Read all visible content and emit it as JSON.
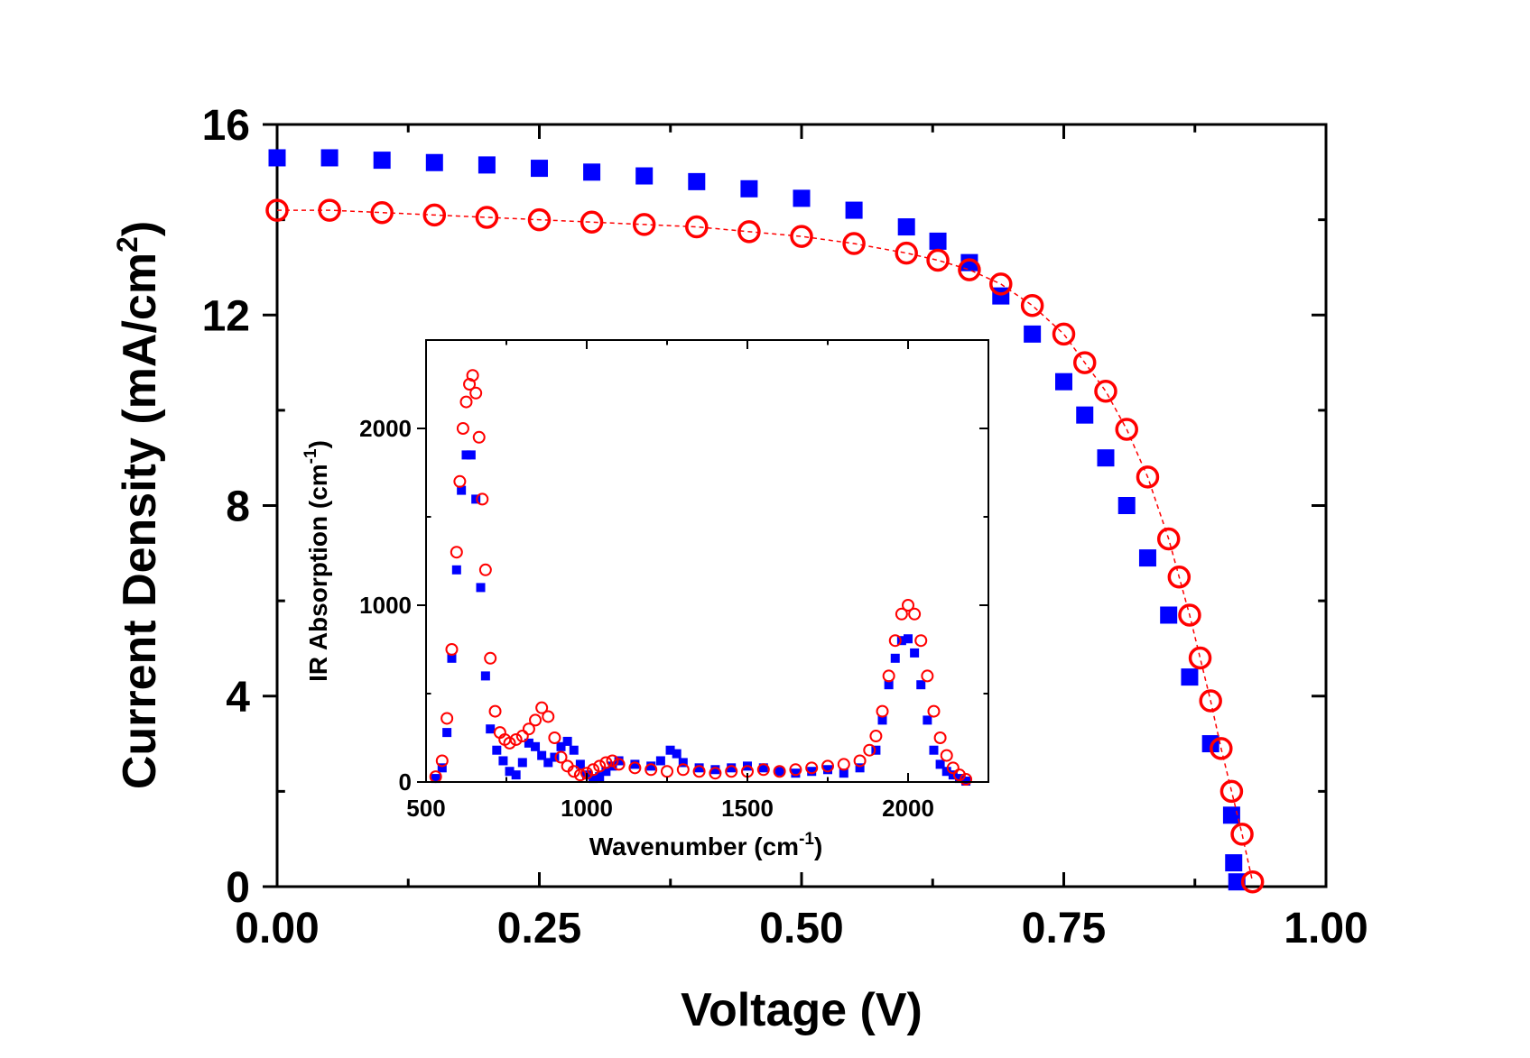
{
  "chart_data": [
    {
      "type": "scatter",
      "title": "",
      "xlabel": "Voltage (V)",
      "ylabel": "Current Density (mA/cm²)",
      "ylabel_main": "Current Density (mA/cm",
      "ylabel_sup": "2",
      "ylabel_tail": ")",
      "xlim": [
        0.0,
        1.0
      ],
      "ylim": [
        0,
        16
      ],
      "xticks": [
        0.0,
        0.25,
        0.5,
        0.75,
        1.0
      ],
      "xtick_labels": [
        "0.00",
        "0.25",
        "0.50",
        "0.75",
        "1.00"
      ],
      "yticks": [
        0,
        4,
        8,
        12,
        16
      ],
      "ytick_labels": [
        "0",
        "4",
        "8",
        "12",
        "16"
      ],
      "grid": false,
      "legend": "none",
      "series": [
        {
          "color": "#0000ff",
          "marker": "filled-square",
          "x": [
            0.0,
            0.05,
            0.1,
            0.15,
            0.2,
            0.25,
            0.3,
            0.35,
            0.4,
            0.45,
            0.5,
            0.55,
            0.6,
            0.63,
            0.66,
            0.69,
            0.72,
            0.75,
            0.77,
            0.79,
            0.81,
            0.83,
            0.85,
            0.87,
            0.89,
            0.91
          ],
          "y": [
            15.3,
            15.3,
            15.25,
            15.2,
            15.15,
            15.08,
            15.0,
            14.92,
            14.8,
            14.65,
            14.45,
            14.2,
            13.85,
            13.55,
            13.1,
            12.4,
            11.6,
            10.6,
            9.9,
            9.0,
            8.0,
            6.9,
            5.7,
            4.4,
            3.0,
            1.5
          ],
          "x_extra": [
            0.912,
            0.915
          ],
          "y_extra": [
            0.5,
            0.1
          ]
        },
        {
          "color": "#ff0000",
          "marker": "open-circle",
          "x": [
            0.0,
            0.05,
            0.1,
            0.15,
            0.2,
            0.25,
            0.3,
            0.35,
            0.4,
            0.45,
            0.5,
            0.55,
            0.6,
            0.63,
            0.66,
            0.69,
            0.72,
            0.75,
            0.77,
            0.79,
            0.81,
            0.83,
            0.85,
            0.86,
            0.87,
            0.88,
            0.89,
            0.9,
            0.91,
            0.92,
            0.93
          ],
          "y": [
            14.2,
            14.2,
            14.15,
            14.1,
            14.05,
            14.0,
            13.95,
            13.9,
            13.85,
            13.75,
            13.65,
            13.5,
            13.3,
            13.15,
            12.95,
            12.65,
            12.2,
            11.6,
            11.0,
            10.4,
            9.6,
            8.6,
            7.3,
            6.5,
            5.7,
            4.8,
            3.9,
            2.9,
            2.0,
            1.1,
            0.1
          ]
        }
      ]
    },
    {
      "type": "scatter",
      "title": "",
      "xlabel": "Wavenumber (cm⁻¹)",
      "xlabel_main": "Wavenumber (cm",
      "xlabel_sup": "-1",
      "xlabel_tail": ")",
      "ylabel": "IR Absorption (cm⁻¹)",
      "ylabel_main": "IR Absorption (cm",
      "ylabel_sup": "-1",
      "ylabel_tail": ")",
      "xlim": [
        500,
        2250
      ],
      "ylim": [
        0,
        2500
      ],
      "xticks": [
        500,
        1000,
        1500,
        2000
      ],
      "xtick_labels": [
        "500",
        "1000",
        "1500",
        "2000"
      ],
      "yticks": [
        0,
        1000,
        2000
      ],
      "ytick_labels": [
        "0",
        "1000",
        "2000"
      ],
      "grid": false,
      "legend": "none",
      "series": [
        {
          "color": "#0000ff",
          "marker": "filled-square",
          "x": [
            530,
            550,
            565,
            580,
            595,
            610,
            625,
            640,
            655,
            670,
            685,
            700,
            720,
            740,
            760,
            780,
            800,
            820,
            840,
            860,
            880,
            900,
            920,
            940,
            960,
            980,
            1000,
            1020,
            1040,
            1060,
            1080,
            1100,
            1150,
            1200,
            1230,
            1260,
            1280,
            1300,
            1350,
            1400,
            1450,
            1500,
            1550,
            1600,
            1650,
            1700,
            1750,
            1800,
            1850,
            1900,
            1920,
            1940,
            1960,
            1980,
            2000,
            2020,
            2040,
            2060,
            2080,
            2100,
            2120,
            2140,
            2160,
            2180
          ],
          "y": [
            20,
            80,
            280,
            700,
            1200,
            1650,
            1850,
            1850,
            1600,
            1100,
            600,
            300,
            180,
            120,
            60,
            40,
            110,
            220,
            200,
            150,
            110,
            140,
            200,
            230,
            180,
            100,
            40,
            20,
            30,
            60,
            90,
            120,
            100,
            90,
            120,
            180,
            160,
            110,
            80,
            70,
            80,
            90,
            80,
            60,
            50,
            60,
            70,
            50,
            80,
            180,
            350,
            550,
            700,
            800,
            810,
            730,
            550,
            350,
            180,
            100,
            60,
            40,
            20,
            5
          ]
        },
        {
          "color": "#ff0000",
          "marker": "open-circle",
          "x": [
            530,
            550,
            565,
            580,
            595,
            605,
            615,
            625,
            635,
            645,
            655,
            665,
            675,
            685,
            700,
            715,
            730,
            745,
            760,
            780,
            800,
            820,
            840,
            860,
            880,
            900,
            920,
            940,
            960,
            980,
            1000,
            1020,
            1040,
            1060,
            1080,
            1100,
            1150,
            1200,
            1250,
            1300,
            1350,
            1400,
            1450,
            1500,
            1550,
            1600,
            1650,
            1700,
            1750,
            1800,
            1850,
            1880,
            1900,
            1920,
            1940,
            1960,
            1980,
            2000,
            2020,
            2040,
            2060,
            2080,
            2100,
            2120,
            2140,
            2160,
            2180
          ],
          "y": [
            30,
            120,
            360,
            750,
            1300,
            1700,
            2000,
            2150,
            2250,
            2300,
            2200,
            1950,
            1600,
            1200,
            700,
            400,
            280,
            240,
            220,
            240,
            260,
            300,
            350,
            420,
            370,
            250,
            140,
            90,
            60,
            40,
            50,
            70,
            90,
            110,
            120,
            100,
            80,
            70,
            60,
            70,
            60,
            50,
            60,
            60,
            70,
            60,
            70,
            80,
            90,
            100,
            120,
            180,
            260,
            400,
            600,
            800,
            950,
            1000,
            950,
            800,
            600,
            400,
            250,
            150,
            80,
            40,
            15
          ]
        }
      ]
    }
  ]
}
